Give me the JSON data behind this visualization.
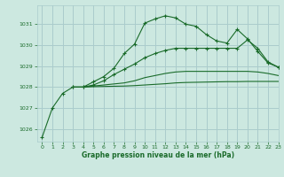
{
  "background_color": "#cce8e0",
  "grid_color": "#aacccc",
  "line_color": "#1a6b2a",
  "label_color": "#1a6b2a",
  "xlabel": "Graphe pression niveau de la mer (hPa)",
  "xlim": [
    -0.5,
    23
  ],
  "ylim": [
    1025.4,
    1031.9
  ],
  "yticks": [
    1026,
    1027,
    1028,
    1029,
    1030,
    1031
  ],
  "xticks": [
    0,
    1,
    2,
    3,
    4,
    5,
    6,
    7,
    8,
    9,
    10,
    11,
    12,
    13,
    14,
    15,
    16,
    17,
    18,
    19,
    20,
    21,
    22,
    23
  ],
  "series": [
    {
      "x": [
        0,
        1,
        2,
        3,
        4,
        5,
        6,
        7,
        8,
        9,
        10,
        11,
        12,
        13,
        14,
        15,
        16,
        17,
        18,
        19,
        20,
        21,
        22,
        23
      ],
      "y": [
        1025.6,
        1027.0,
        1027.7,
        1028.0,
        1028.0,
        1028.25,
        1028.5,
        1028.9,
        1029.6,
        1030.05,
        1031.05,
        1031.25,
        1031.4,
        1031.3,
        1031.0,
        1030.9,
        1030.5,
        1030.2,
        1030.1,
        1030.75,
        1030.3,
        1029.7,
        1029.15,
        1028.95
      ],
      "marker": "+",
      "linestyle": "-"
    },
    {
      "x": [
        3,
        4,
        5,
        6,
        7,
        8,
        9,
        10,
        11,
        12,
        13,
        14,
        15,
        16,
        17,
        18,
        19,
        20,
        21,
        22,
        23
      ],
      "y": [
        1028.0,
        1028.0,
        1028.1,
        1028.3,
        1028.6,
        1028.85,
        1029.1,
        1029.4,
        1029.6,
        1029.75,
        1029.85,
        1029.85,
        1029.85,
        1029.85,
        1029.85,
        1029.85,
        1029.85,
        1030.25,
        1029.85,
        1029.2,
        1028.95
      ],
      "marker": "+",
      "linestyle": "-"
    },
    {
      "x": [
        3,
        4,
        5,
        6,
        7,
        8,
        9,
        10,
        11,
        12,
        13,
        14,
        15,
        16,
        17,
        18,
        19,
        20,
        21,
        22,
        23
      ],
      "y": [
        1028.0,
        1028.0,
        1028.05,
        1028.1,
        1028.15,
        1028.2,
        1028.3,
        1028.45,
        1028.55,
        1028.65,
        1028.72,
        1028.75,
        1028.75,
        1028.75,
        1028.75,
        1028.75,
        1028.75,
        1028.75,
        1028.72,
        1028.65,
        1028.55
      ],
      "marker": null,
      "linestyle": "-"
    },
    {
      "x": [
        3,
        4,
        5,
        6,
        7,
        8,
        9,
        10,
        11,
        12,
        13,
        14,
        15,
        16,
        17,
        18,
        19,
        20,
        21,
        22,
        23
      ],
      "y": [
        1028.0,
        1028.0,
        1028.02,
        1028.03,
        1028.04,
        1028.05,
        1028.07,
        1028.1,
        1028.13,
        1028.16,
        1028.2,
        1028.22,
        1028.23,
        1028.24,
        1028.25,
        1028.26,
        1028.26,
        1028.27,
        1028.27,
        1028.27,
        1028.27
      ],
      "marker": null,
      "linestyle": "-"
    }
  ]
}
